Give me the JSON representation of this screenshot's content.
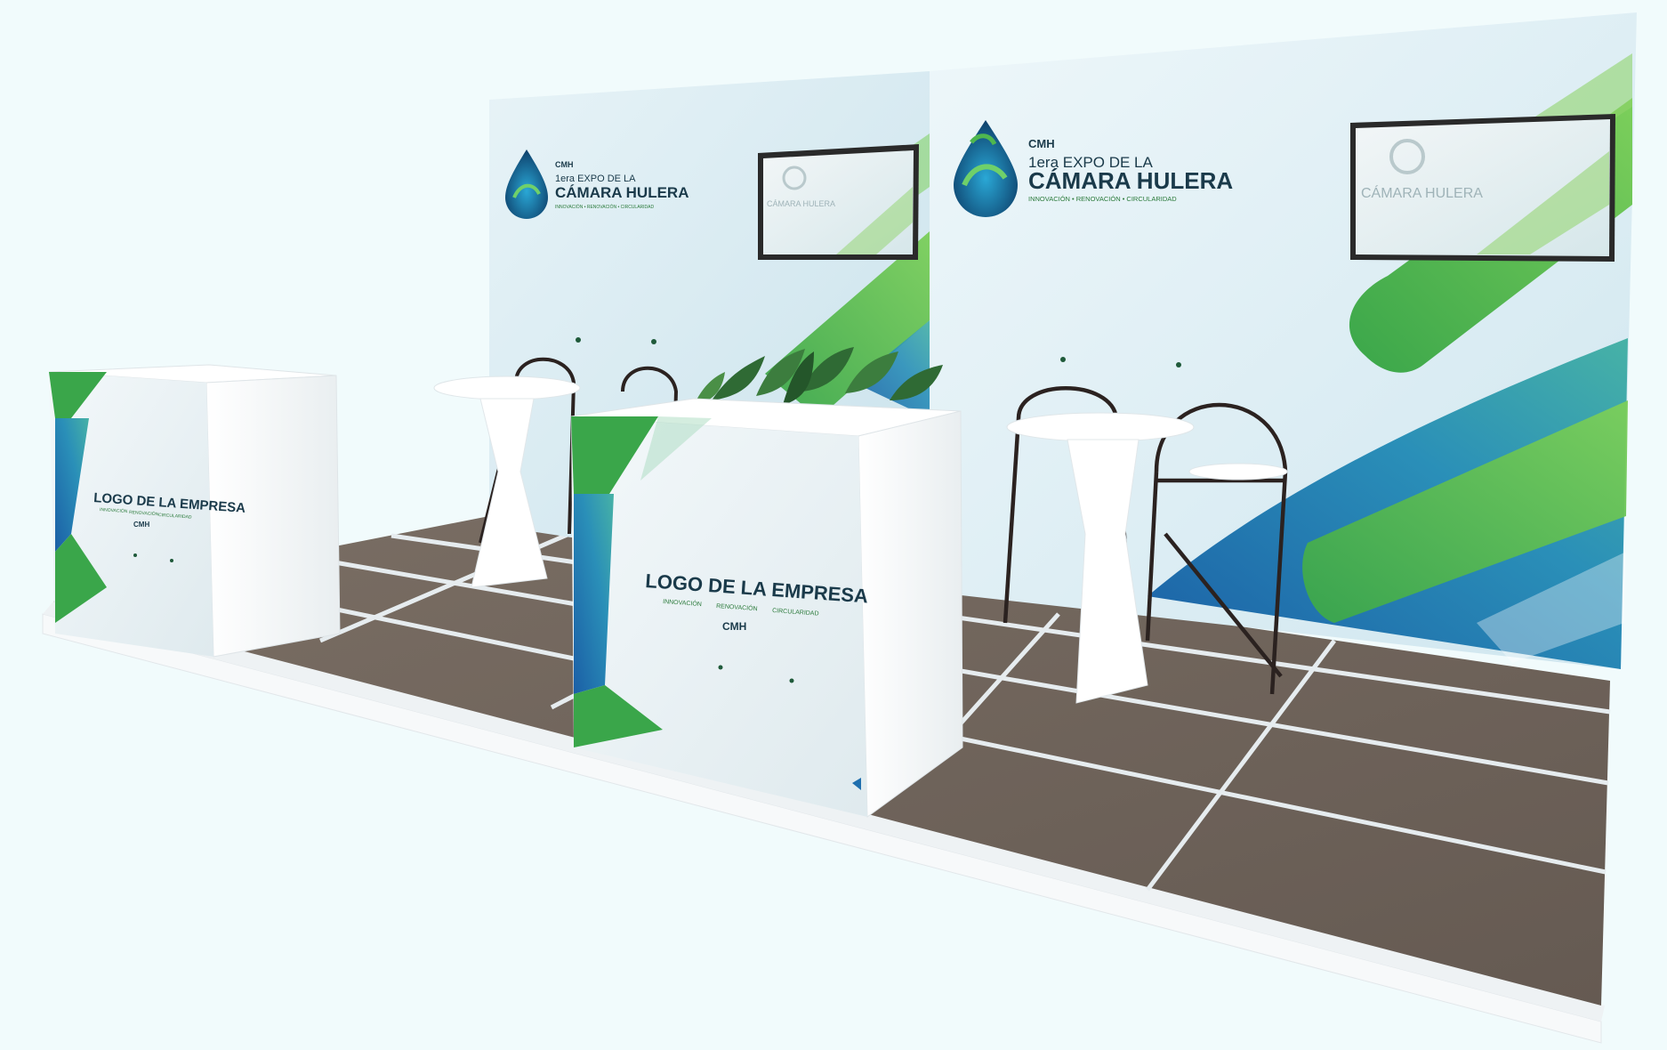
{
  "booth": {
    "wall_logo": {
      "badge": "CMH",
      "edition": "1era EXPO DE LA",
      "name": "CÁMARA HULERA",
      "tagline": "INNOVACIÓN • RENOVACIÓN • CIRCULARIDAD"
    },
    "screen_logo": {
      "name": "CÁMARA HULERA"
    },
    "counter_small": {
      "company": "LOGO DE LA EMPRESA",
      "words": [
        "INNOVACIÓN",
        "RENOVACIÓN",
        "CIRCULARIDAD"
      ],
      "badge": "CMH"
    },
    "counter_large": {
      "company": "LOGO DE LA EMPRESA",
      "words": [
        "INNOVACIÓN",
        "RENOVACIÓN",
        "CIRCULARIDAD"
      ],
      "badge": "CMH"
    }
  },
  "colors": {
    "background": "#f1fbfc",
    "wall": "#d9ecf2",
    "green": "#4fb74f",
    "blue": "#1f6fae",
    "teal": "#2a9d9a",
    "floor": "#6f655c",
    "floor_lines": "#e8ecef",
    "furniture": "#ffffff",
    "chair_frame": "#2b2220",
    "text_dark": "#1a3a4a"
  }
}
